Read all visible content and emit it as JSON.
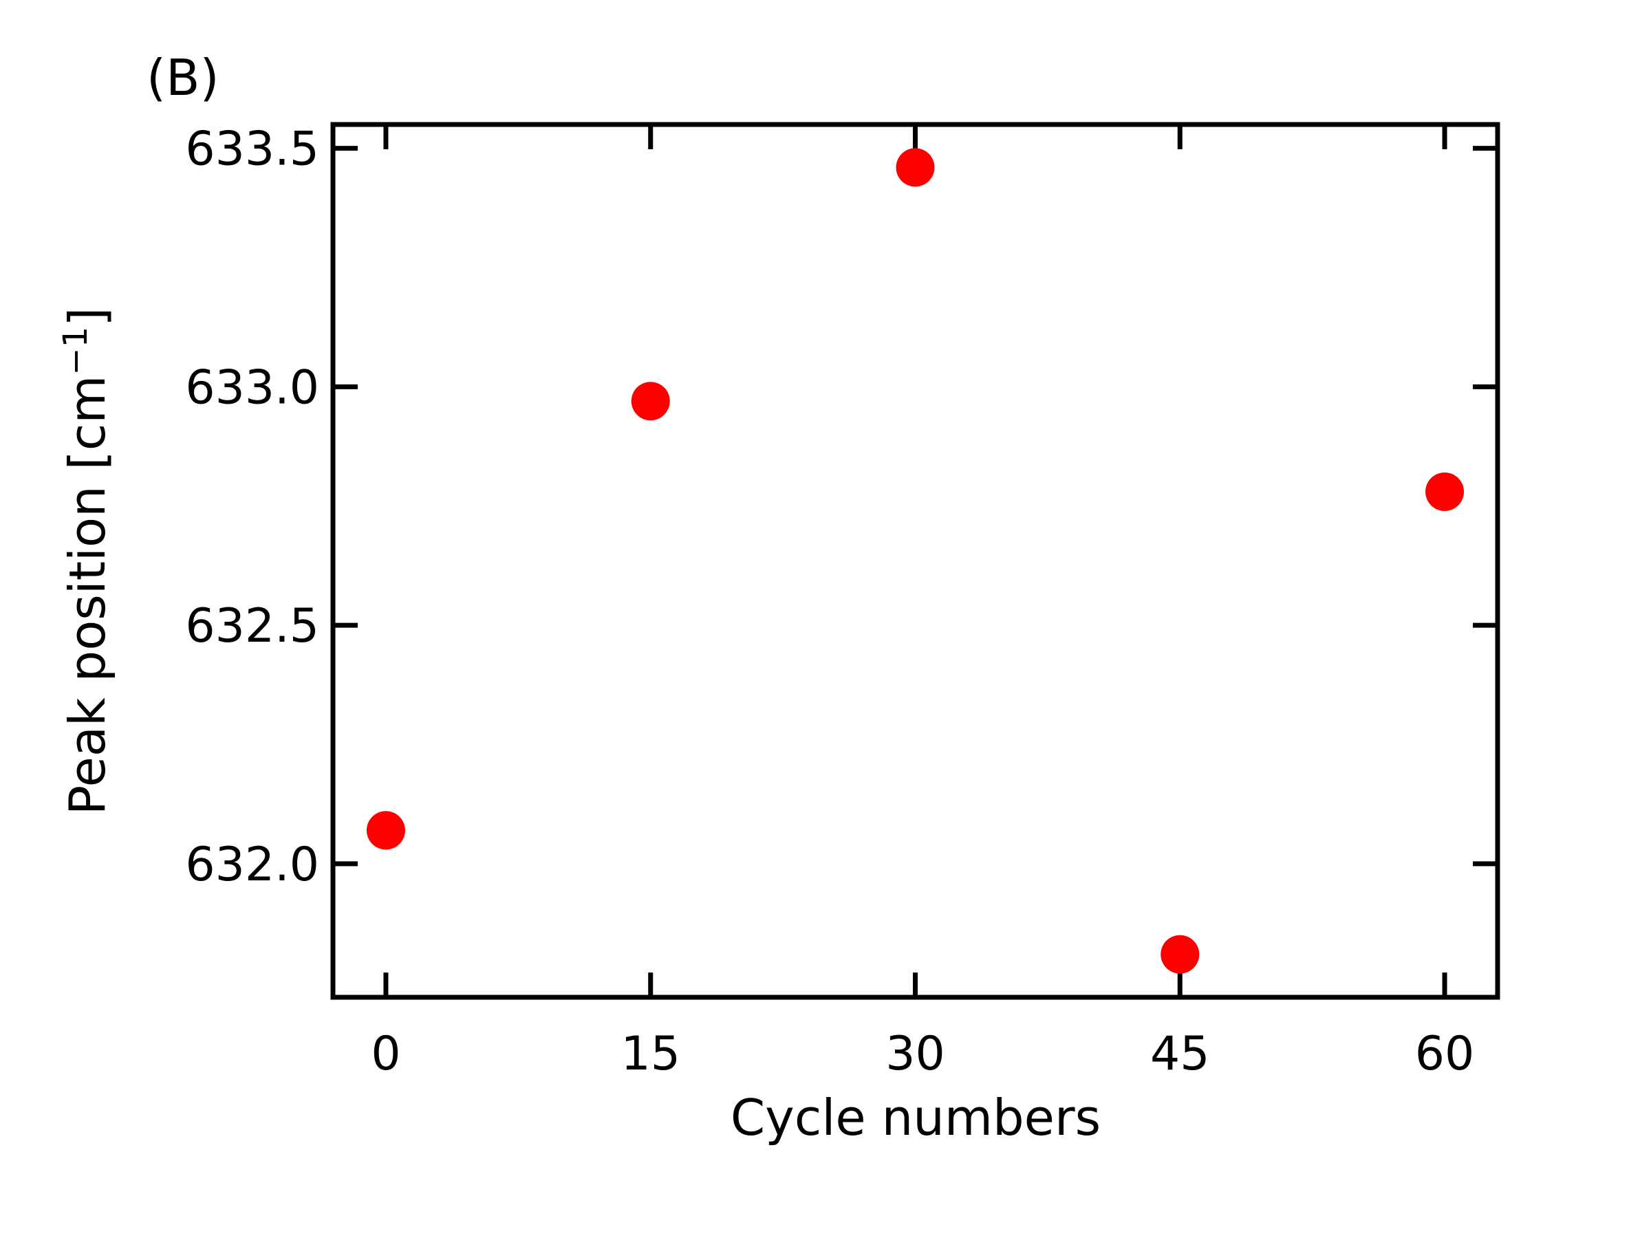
{
  "chart_data": {
    "type": "scatter",
    "panel_label": "(B)",
    "title": "",
    "xlabel": "Cycle numbers",
    "ylabel": "Peak position [cm",
    "ylabel_superscript": "−1",
    "ylabel_suffix": "]",
    "xlim": [
      -3,
      63
    ],
    "ylim": [
      631.72,
      633.55
    ],
    "xticks": [
      0,
      15,
      30,
      45,
      60
    ],
    "xtick_labels": [
      "0",
      "15",
      "30",
      "45",
      "60"
    ],
    "yticks": [
      632.0,
      632.5,
      633.0,
      633.5
    ],
    "ytick_labels": [
      "632.0",
      "632.5",
      "633.0",
      "633.5"
    ],
    "grid": false,
    "legend": "none",
    "marker_color": "#ff0000",
    "series": [
      {
        "x": [
          0,
          15,
          30,
          45,
          60
        ],
        "y": [
          632.07,
          632.97,
          633.46,
          631.81,
          632.78
        ]
      }
    ]
  }
}
